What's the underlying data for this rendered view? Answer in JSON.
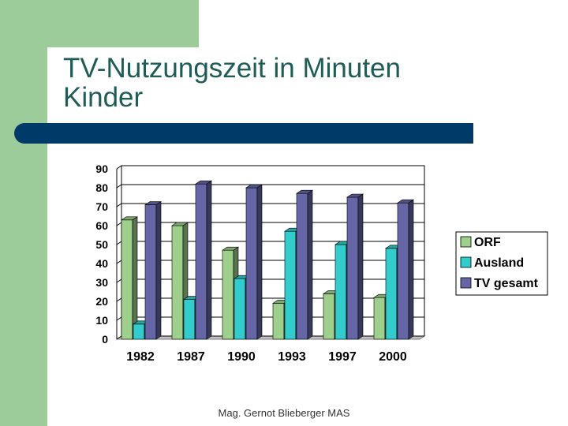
{
  "slide": {
    "title_lines": [
      "TV-Nutzungszeit in Minuten",
      "Kinder"
    ],
    "footer": "Mag. Gernot Blieberger MAS"
  },
  "colors": {
    "background_green": "#9dcc9b",
    "rule_blue": "#003a68",
    "title_text": "#1e5c57"
  },
  "chart_data": {
    "type": "bar",
    "style": "3d-clustered",
    "categories": [
      "1982",
      "1987",
      "1990",
      "1993",
      "1997",
      "2000"
    ],
    "series": [
      {
        "name": "ORF",
        "values": [
          63,
          60,
          47,
          19,
          24,
          22
        ],
        "color": "#9fcf8c"
      },
      {
        "name": "Ausland",
        "values": [
          8,
          21,
          32,
          57,
          50,
          48
        ],
        "color": "#33cccc"
      },
      {
        "name": "TV gesamt",
        "values": [
          71,
          82,
          80,
          77,
          75,
          72
        ],
        "color": "#6666a6"
      }
    ],
    "y_ticks": [
      "0",
      "10",
      "20",
      "30",
      "40",
      "50",
      "60",
      "70",
      "80",
      "90"
    ],
    "ylim": [
      0,
      90
    ],
    "grid": true,
    "legend_position": "right"
  }
}
